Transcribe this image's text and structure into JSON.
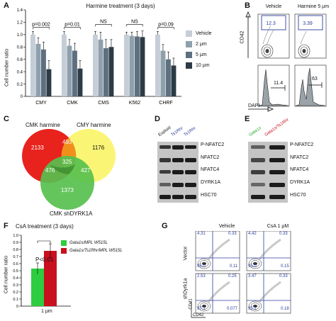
{
  "panelA": {
    "letter": "A",
    "title": "Harmine treatment (3 days)",
    "ylabel": "Cell number ratio",
    "legend": [
      "Vehicle",
      "2 μm",
      "5 μm",
      "10 μm"
    ],
    "colors": [
      "#c5ced6",
      "#8fa0ad",
      "#5e7080",
      "#2c3b45"
    ],
    "pvalues": [
      "p=0.002",
      "p=0.01",
      "NS",
      "NS",
      "p=0.09"
    ],
    "yticks": [
      "0",
      "0.2",
      "0.4",
      "0.6",
      "0.8",
      "1.0",
      "1.2",
      "1.4"
    ]
  },
  "chart_data": [
    {
      "type": "bar",
      "title": "Harmine treatment (3 days)",
      "xlabel": "",
      "ylabel": "Cell number ratio",
      "ylim": [
        0,
        1.4
      ],
      "categories": [
        "CMY",
        "CMK",
        "CMS",
        "K562",
        "CHRF"
      ],
      "series": [
        {
          "name": "Vehicle",
          "values": [
            1.0,
            1.0,
            1.0,
            1.0,
            1.0
          ]
        },
        {
          "name": "2 μm",
          "values": [
            0.85,
            0.82,
            0.92,
            0.98,
            0.74
          ]
        },
        {
          "name": "5 μm",
          "values": [
            0.76,
            0.74,
            0.78,
            0.97,
            0.6
          ]
        },
        {
          "name": "10 μm",
          "values": [
            0.44,
            0.45,
            0.8,
            0.96,
            0.5
          ]
        }
      ]
    },
    {
      "type": "bar",
      "title": "CsA treatment (3 days)",
      "xlabel": "1 μm",
      "ylabel": "Cell number ratio",
      "ylim": [
        0,
        1.0
      ],
      "categories": [
        "1 μm"
      ],
      "series": [
        {
          "name": "Gata1s/MPL W515L",
          "values": [
            0.53
          ]
        },
        {
          "name": "Gata1s/Ts1Rhr/MPL W515L",
          "values": [
            0.78
          ]
        }
      ]
    }
  ],
  "panelB": {
    "letter": "B",
    "col_labels": [
      "Vehicle",
      "Harmine 5 μm"
    ],
    "gate_values": [
      "12.3",
      "3.39"
    ],
    "hist_values": [
      "11.4",
      "63"
    ],
    "ylabel": "CD42",
    "xlabel": "DAPI"
  },
  "panelC": {
    "letter": "C",
    "sets": [
      "CMK harmine",
      "CMY harmine",
      "CMK shDYRK1A"
    ],
    "colors": [
      "#e8231e",
      "#fbf46a",
      "#57c04e"
    ],
    "counts": [
      "2133",
      "493",
      "1176",
      "325",
      "476",
      "427",
      "1373"
    ]
  },
  "panelD": {
    "letter": "D",
    "lanes": [
      "Euploid",
      "Ts1Rhr",
      "Ts1Rhr"
    ],
    "rows": [
      "P-NFATC2",
      "NFATC2",
      "NFATC4",
      "DYRK1A",
      "HSC70"
    ]
  },
  "panelE": {
    "letter": "E",
    "lanes": [
      "Gata1s",
      "Gata1s/Ts1Rhr"
    ],
    "rows": [
      "P-NFATC2",
      "NFATC2",
      "NFATC4",
      "DYRK1A",
      "HSC70"
    ]
  },
  "panelF": {
    "letter": "F",
    "title": "CsA treatment (3 days)",
    "ylabel": "Cell number ratio",
    "pvalue": "P<0.01",
    "xlabel": "1 μm",
    "legend": [
      "Gata1s/MPL W515L",
      "Gata1s/Ts1Rhr/MPL W515L"
    ],
    "colors": [
      "#2ecc40",
      "#c8101e"
    ],
    "yticks": [
      "0",
      "0.1",
      "0.2",
      "0.3",
      "0.4",
      "0.5",
      "0.6",
      "0.7",
      "0.8",
      "0.9",
      "1.0"
    ]
  },
  "panelG": {
    "letter": "G",
    "col_labels": [
      "Vehicle",
      "CsA 1 μM"
    ],
    "row_labels": [
      "Vector",
      "shDyrk1a"
    ],
    "ylabel": "CD41",
    "xlabel": "CD42",
    "quadrants": [
      [
        "4.31",
        "0.33",
        "95.0",
        "0.11"
      ],
      [
        "4.42",
        "0.33",
        "95.0",
        "0.15"
      ],
      [
        "2.53",
        "0.25",
        "97.1",
        "0.077"
      ],
      [
        "3.47",
        "0.33",
        "95.1",
        "0.18"
      ]
    ]
  }
}
